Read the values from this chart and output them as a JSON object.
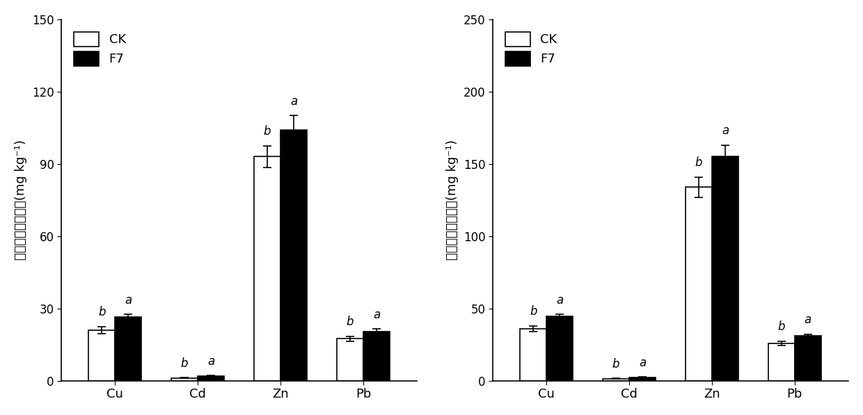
{
  "left_chart": {
    "ylabel_chinese": "地上部重金属含量",
    "ylabel_units": "(mg kg⁻¹)",
    "ylim": [
      0,
      150
    ],
    "yticks": [
      0,
      30,
      60,
      90,
      120,
      150
    ],
    "categories": [
      "Cu",
      "Cd",
      "Zn",
      "Pb"
    ],
    "CK_values": [
      21.0,
      1.2,
      93.0,
      17.5
    ],
    "F7_values": [
      26.5,
      2.0,
      104.0,
      20.5
    ],
    "CK_errors": [
      1.5,
      0.15,
      4.5,
      1.0
    ],
    "F7_errors": [
      1.0,
      0.15,
      6.0,
      1.0
    ],
    "CK_labels": [
      "b",
      "b",
      "b",
      "b"
    ],
    "F7_labels": [
      "a",
      "a",
      "a",
      "a"
    ]
  },
  "right_chart": {
    "ylabel_chinese": "地下部重金属含量",
    "ylabel_units": "(mg kg⁻¹)",
    "ylim": [
      0,
      250
    ],
    "yticks": [
      0,
      50,
      100,
      150,
      200,
      250
    ],
    "categories": [
      "Cu",
      "Cd",
      "Zn",
      "Pb"
    ],
    "CK_values": [
      36.0,
      1.5,
      134.0,
      26.0
    ],
    "F7_values": [
      44.5,
      2.5,
      155.0,
      31.0
    ],
    "CK_errors": [
      2.0,
      0.2,
      7.0,
      1.5
    ],
    "F7_errors": [
      1.5,
      0.2,
      8.0,
      1.2
    ],
    "CK_labels": [
      "b",
      "b",
      "b",
      "b"
    ],
    "F7_labels": [
      "a",
      "a",
      "a",
      "a"
    ]
  },
  "legend_labels": [
    "CK",
    "F7"
  ],
  "bar_width": 0.32,
  "bar_colors": [
    "white",
    "black"
  ],
  "bar_edgecolor": "black",
  "background_color": "white",
  "font_size": 13,
  "label_font_size": 12,
  "tick_font_size": 12
}
